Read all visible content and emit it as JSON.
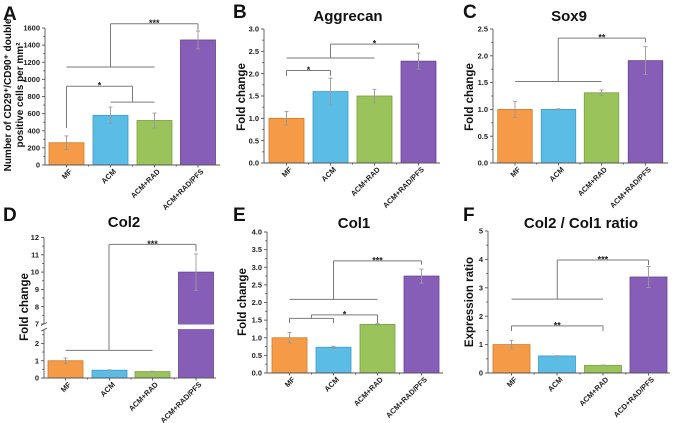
{
  "colors": {
    "bar_fill": [
      "#F59B47",
      "#5BBDE6",
      "#9AC35C",
      "#875EB7"
    ],
    "bar_stroke": [
      "#D07A2A",
      "#3B9CC8",
      "#78A03D",
      "#66428F"
    ]
  },
  "chart_data": [
    {
      "panel": "A",
      "type": "bar",
      "title": "",
      "ylabel": "Number of CD29⁺/CD90⁺ double positive cells per mm²",
      "ylabel_lines": [
        "Number of CD29⁺/CD90⁺ double",
        "positive  cells per mm²"
      ],
      "xlabel": "",
      "categories": [
        "MF",
        "ACM",
        "ACM+RAD",
        "ACM+RAD/PFS"
      ],
      "values": [
        260,
        580,
        520,
        1460
      ],
      "errors": [
        80,
        97,
        87,
        105
      ],
      "ylim": [
        0,
        1600
      ],
      "yticks": [
        0,
        200,
        400,
        600,
        800,
        1000,
        1200,
        1400,
        1600
      ],
      "ytick_labels": [
        "0",
        "200",
        "400",
        "600",
        "800",
        "1000",
        "1200",
        "1400",
        "1600"
      ],
      "significance": [
        {
          "groups": [
            [
              "MF"
            ],
            [
              "ACM",
              "ACM+RAD"
            ]
          ],
          "label": "*"
        },
        {
          "groups": [
            [
              "MF",
              "ACM",
              "ACM+RAD"
            ],
            [
              "ACM+RAD/PFS"
            ]
          ],
          "label": "***"
        }
      ]
    },
    {
      "panel": "B",
      "type": "bar",
      "title": "Aggrecan",
      "ylabel": "Fold change",
      "ylabel_lines": [
        "Fold change"
      ],
      "xlabel": "",
      "categories": [
        "MF",
        "ACM",
        "ACM+RAD",
        "ACM+RAD/PFS"
      ],
      "values": [
        1.0,
        1.6,
        1.5,
        2.28
      ],
      "errors": [
        0.15,
        0.3,
        0.15,
        0.18
      ],
      "ylim": [
        0,
        3.0
      ],
      "yticks": [
        0,
        0.5,
        1.0,
        1.5,
        2.0,
        2.5,
        3.0
      ],
      "ytick_labels": [
        "0.0",
        "0.5",
        "1.0",
        "1.5",
        "2.0",
        "2.5",
        "3.0"
      ],
      "significance": [
        {
          "groups": [
            [
              "MF"
            ],
            [
              "ACM"
            ]
          ],
          "label": "*"
        },
        {
          "groups": [
            [
              "MF",
              "ACM",
              "ACM+RAD"
            ],
            [
              "ACM+RAD/PFS"
            ]
          ],
          "label": "*"
        }
      ]
    },
    {
      "panel": "C",
      "type": "bar",
      "title": "Sox9",
      "ylabel": "Fold change",
      "ylabel_lines": [
        "Fold change"
      ],
      "xlabel": "",
      "categories": [
        "MF",
        "ACM",
        "ACM+RAD",
        "ACM+RAD/PFS"
      ],
      "values": [
        1.0,
        1.0,
        1.31,
        1.91
      ],
      "errors": [
        0.15,
        0.01,
        0.05,
        0.26
      ],
      "ylim": [
        0,
        2.5
      ],
      "yticks": [
        0,
        0.5,
        1.0,
        1.5,
        2.0,
        2.5
      ],
      "ytick_labels": [
        "0.0",
        "0.5",
        "1.0",
        "1.5",
        "2.0",
        "2.5"
      ],
      "significance": [
        {
          "groups": [
            [
              "MF",
              "ACM",
              "ACM+RAD"
            ],
            [
              "ACM+RAD/PFS"
            ]
          ],
          "label": "**"
        }
      ]
    },
    {
      "panel": "D",
      "type": "bar",
      "title": "Col2",
      "ylabel": "Fold change",
      "ylabel_lines": [
        "Fold change"
      ],
      "xlabel": "",
      "categories": [
        "MF",
        "ACM",
        "ACM+RAD",
        "ACM+RAD/PFS"
      ],
      "values": [
        1.0,
        0.45,
        0.37,
        10.0
      ],
      "errors": [
        0.15,
        0.02,
        0.02,
        1.05
      ],
      "ylim": [
        0,
        12
      ],
      "axis_break": [
        2.8,
        7
      ],
      "yticks": [
        0,
        1,
        2,
        7,
        8,
        9,
        10,
        11,
        12
      ],
      "ytick_labels": [
        "0",
        "1",
        "2",
        "7",
        "8",
        "9",
        "10",
        "11",
        "12"
      ],
      "significance": [
        {
          "groups": [
            [
              "MF",
              "ACM",
              "ACM+RAD"
            ],
            [
              "ACM+RAD/PFS"
            ]
          ],
          "label": "***"
        }
      ]
    },
    {
      "panel": "E",
      "type": "bar",
      "title": "Col1",
      "ylabel": "Fold change",
      "ylabel_lines": [
        "Fold change"
      ],
      "xlabel": "",
      "categories": [
        "MF",
        "ACM",
        "ACM+RAD",
        "ACM+RAD/PFS"
      ],
      "values": [
        1.0,
        0.73,
        1.38,
        2.75
      ],
      "errors": [
        0.15,
        0.03,
        0.03,
        0.2
      ],
      "ylim": [
        0,
        4.0
      ],
      "yticks": [
        0,
        0.5,
        1.0,
        1.5,
        2.0,
        2.5,
        3.0,
        3.5,
        4.0
      ],
      "ytick_labels": [
        "0.0",
        "0.5",
        "1.0",
        "1.5",
        "2.0",
        "2.5",
        "3.0",
        "3.5",
        "4.0"
      ],
      "significance": [
        {
          "groups": [
            [
              "MF",
              "ACM"
            ],
            [
              "ACM+RAD"
            ]
          ],
          "label": "*"
        },
        {
          "groups": [
            [
              "MF",
              "ACM",
              "ACM+RAD"
            ],
            [
              "ACM+RAD/PFS"
            ]
          ],
          "label": "***"
        }
      ]
    },
    {
      "panel": "F",
      "type": "bar",
      "title": "Col2 / Col1 ratio",
      "ylabel": "Expression ratio",
      "ylabel_lines": [
        "Expression ratio"
      ],
      "xlabel": "",
      "categories": [
        "MF",
        "ACM",
        "ACM+RAD",
        "ACD+RAD/PFS"
      ],
      "values": [
        1.0,
        0.6,
        0.27,
        3.38
      ],
      "errors": [
        0.15,
        0.01,
        0.01,
        0.37
      ],
      "ylim": [
        0,
        5
      ],
      "yticks": [
        0,
        1,
        2,
        3,
        4,
        5
      ],
      "ytick_labels": [
        "0",
        "1",
        "2",
        "3",
        "4",
        "5"
      ],
      "significance": [
        {
          "groups": [
            [
              "MF"
            ],
            [
              "ACM+RAD"
            ]
          ],
          "label": "**"
        },
        {
          "groups": [
            [
              "MF",
              "ACM",
              "ACM+RAD"
            ],
            [
              "ACD+RAD/PFS"
            ]
          ],
          "label": "***"
        }
      ]
    }
  ]
}
